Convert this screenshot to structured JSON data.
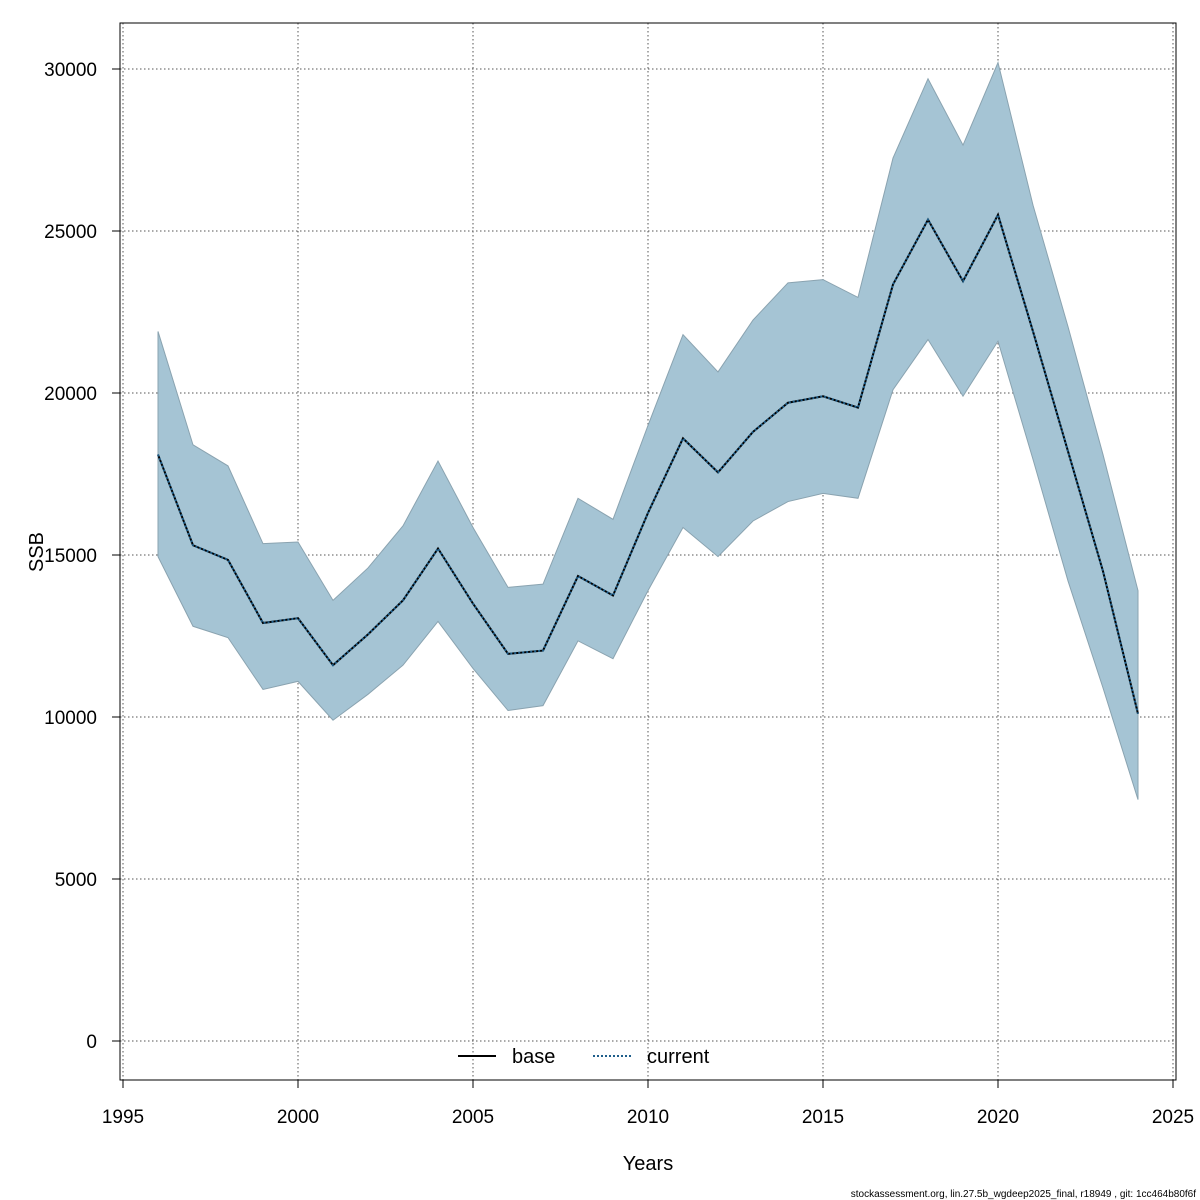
{
  "chart_data": {
    "type": "area",
    "title": "",
    "xlabel": "Years",
    "ylabel": "SSB",
    "xlim": [
      1995,
      2025
    ],
    "ylim": [
      0,
      30000
    ],
    "x_ticks": [
      1995,
      2000,
      2005,
      2010,
      2015,
      2020,
      2025
    ],
    "x_tick_labels": [
      "1995",
      "2000",
      "2005",
      "2010",
      "2015",
      "2020",
      "2025"
    ],
    "y_ticks": [
      0,
      5000,
      10000,
      15000,
      20000,
      25000,
      30000
    ],
    "y_tick_labels": [
      "0",
      "5000",
      "10000",
      "15000",
      "20000",
      "25000",
      "30000"
    ],
    "grid": true,
    "legend_position": "bottom-center",
    "x": [
      1996,
      1997,
      1998,
      1999,
      2000,
      2001,
      2002,
      2003,
      2004,
      2005,
      2006,
      2007,
      2008,
      2009,
      2010,
      2011,
      2012,
      2013,
      2014,
      2015,
      2016,
      2017,
      2018,
      2019,
      2020,
      2021,
      2022,
      2023,
      2024
    ],
    "series": [
      {
        "name": "base",
        "style": "solid",
        "color": "#000000",
        "values": [
          18100,
          15300,
          14850,
          12900,
          13050,
          11600,
          12550,
          13600,
          15200,
          13500,
          11950,
          12050,
          14350,
          13750,
          16300,
          18600,
          17550,
          18800,
          19700,
          19900,
          19550,
          23350,
          25350,
          23450,
          25500,
          21900,
          18200,
          14500,
          10100
        ]
      },
      {
        "name": "current",
        "style": "dotted",
        "color": "#1f5f8b",
        "values": [
          18100,
          15300,
          14850,
          12900,
          13050,
          11600,
          12550,
          13600,
          15200,
          13500,
          11950,
          12050,
          14350,
          13750,
          16300,
          18600,
          17550,
          18800,
          19700,
          19900,
          19550,
          23350,
          25350,
          23450,
          25500,
          21900,
          18200,
          14500,
          10100
        ]
      }
    ],
    "band": {
      "color": "#a5c4d4",
      "lower": [
        14950,
        12800,
        12450,
        10850,
        11100,
        9900,
        10700,
        11600,
        12950,
        11500,
        10200,
        10350,
        12350,
        11800,
        13900,
        15850,
        14950,
        16050,
        16650,
        16900,
        16750,
        20100,
        21650,
        19900,
        21600,
        17950,
        14200,
        10900,
        7450
      ],
      "upper": [
        21900,
        18400,
        17750,
        15350,
        15400,
        13600,
        14600,
        15900,
        17900,
        15850,
        14000,
        14100,
        16750,
        16100,
        19000,
        21800,
        20650,
        22250,
        23400,
        23500,
        22950,
        27250,
        29700,
        27650,
        30200,
        25800,
        22050,
        18100,
        13900
      ]
    },
    "footer": "stockassessment.org, lin.27.5b_wgdeep2025_final, r18949 , git: 1cc464b80f6f"
  }
}
